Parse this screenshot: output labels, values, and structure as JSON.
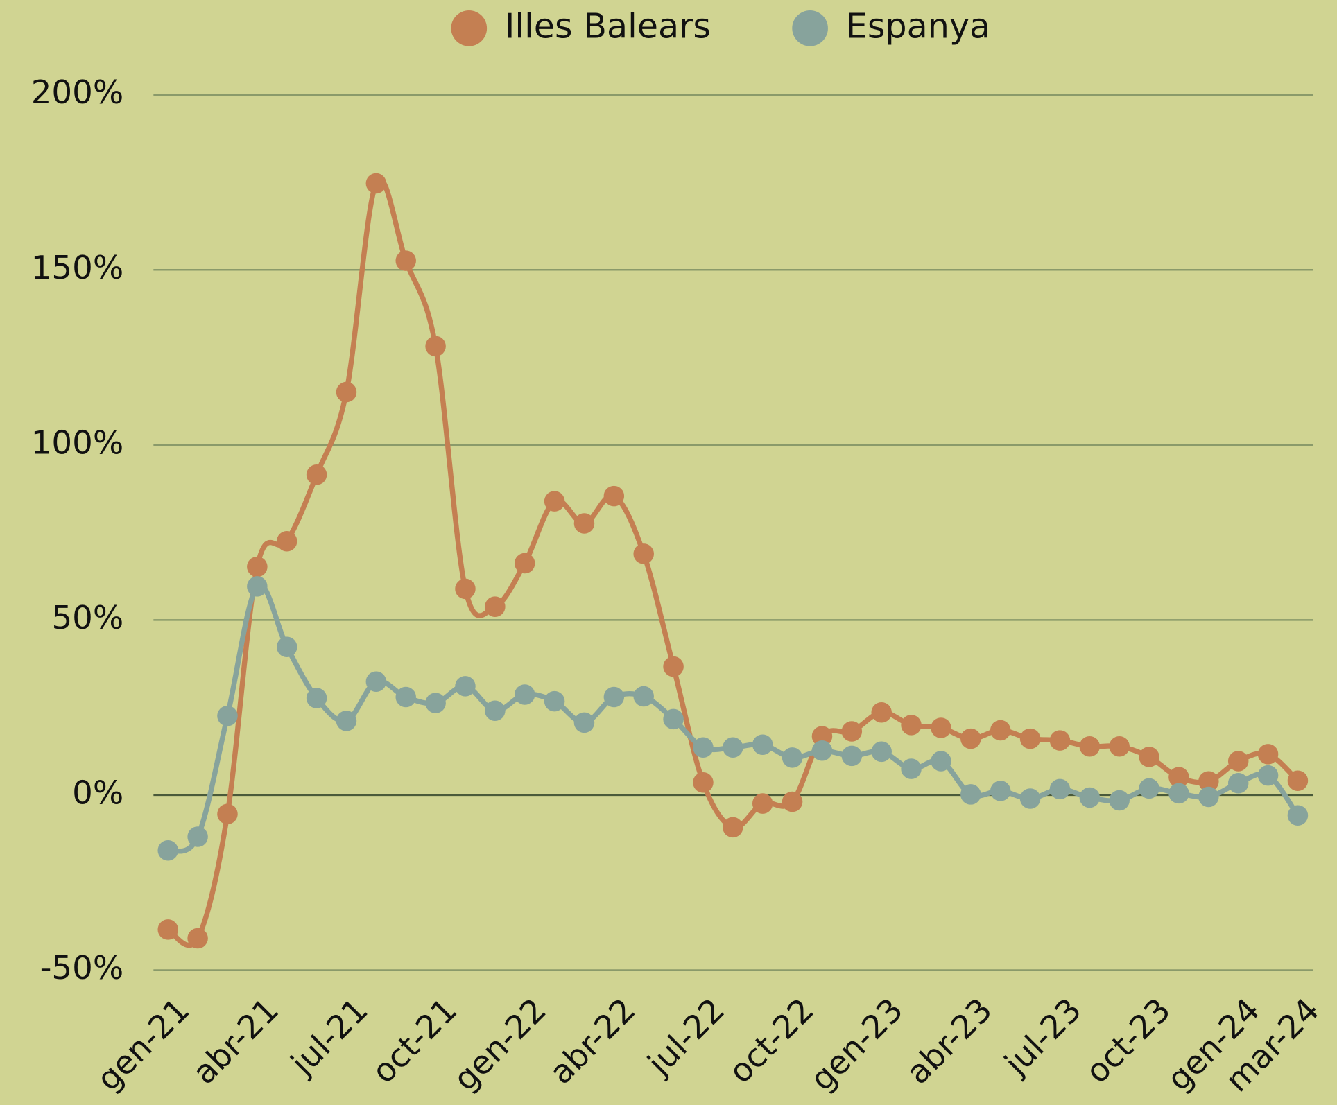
{
  "chart_data": {
    "type": "line",
    "categories": [
      "gen-21",
      null,
      null,
      "abr-21",
      null,
      null,
      "jul-21",
      null,
      null,
      "oct-21",
      null,
      null,
      "gen-22",
      null,
      null,
      "abr-22",
      null,
      null,
      "jul-22",
      null,
      null,
      "oct-22",
      null,
      null,
      "gen-23",
      null,
      null,
      "abr-23",
      null,
      null,
      "jul-23",
      null,
      null,
      "oct-23",
      null,
      null,
      "gen-24",
      null,
      "mar-24"
    ],
    "series": [
      {
        "name": "Illes Balears",
        "color": "#c47f52",
        "values": [
          -38.4,
          -40.9,
          -5.4,
          65.2,
          72.5,
          91.5,
          115.1,
          174.7,
          152.6,
          128.2,
          58.9,
          53.8,
          66.2,
          83.9,
          77.6,
          85.4,
          68.9,
          36.7,
          3.6,
          -9.2,
          -2.4,
          -1.9,
          16.8,
          18.2,
          23.6,
          20.0,
          19.2,
          16.1,
          18.5,
          16.1,
          15.6,
          13.9,
          13.9,
          10.9,
          5.1,
          3.9,
          9.7,
          11.7,
          4.1
        ]
      },
      {
        "name": "Espanya",
        "color": "#87a39c",
        "values": [
          -15.8,
          -11.9,
          22.6,
          59.6,
          42.3,
          27.7,
          21.2,
          32.4,
          28.0,
          26.3,
          31.1,
          24.1,
          28.7,
          26.8,
          20.7,
          28.0,
          28.2,
          21.7,
          13.6,
          13.6,
          14.4,
          10.7,
          12.7,
          11.2,
          12.4,
          7.5,
          9.7,
          0.2,
          1.2,
          -1.0,
          1.7,
          -0.7,
          -1.5,
          1.9,
          0.5,
          -0.5,
          3.4,
          5.6,
          -5.8
        ]
      }
    ],
    "ylim": [
      -50,
      200
    ],
    "yticks": [
      {
        "value": -50,
        "label": "-50%"
      },
      {
        "value": 0,
        "label": "0%"
      },
      {
        "value": 50,
        "label": "50%"
      },
      {
        "value": 100,
        "label": "100%"
      },
      {
        "value": 150,
        "label": "150%"
      },
      {
        "value": 200,
        "label": "200%"
      }
    ],
    "grid": true,
    "legend": "top"
  }
}
